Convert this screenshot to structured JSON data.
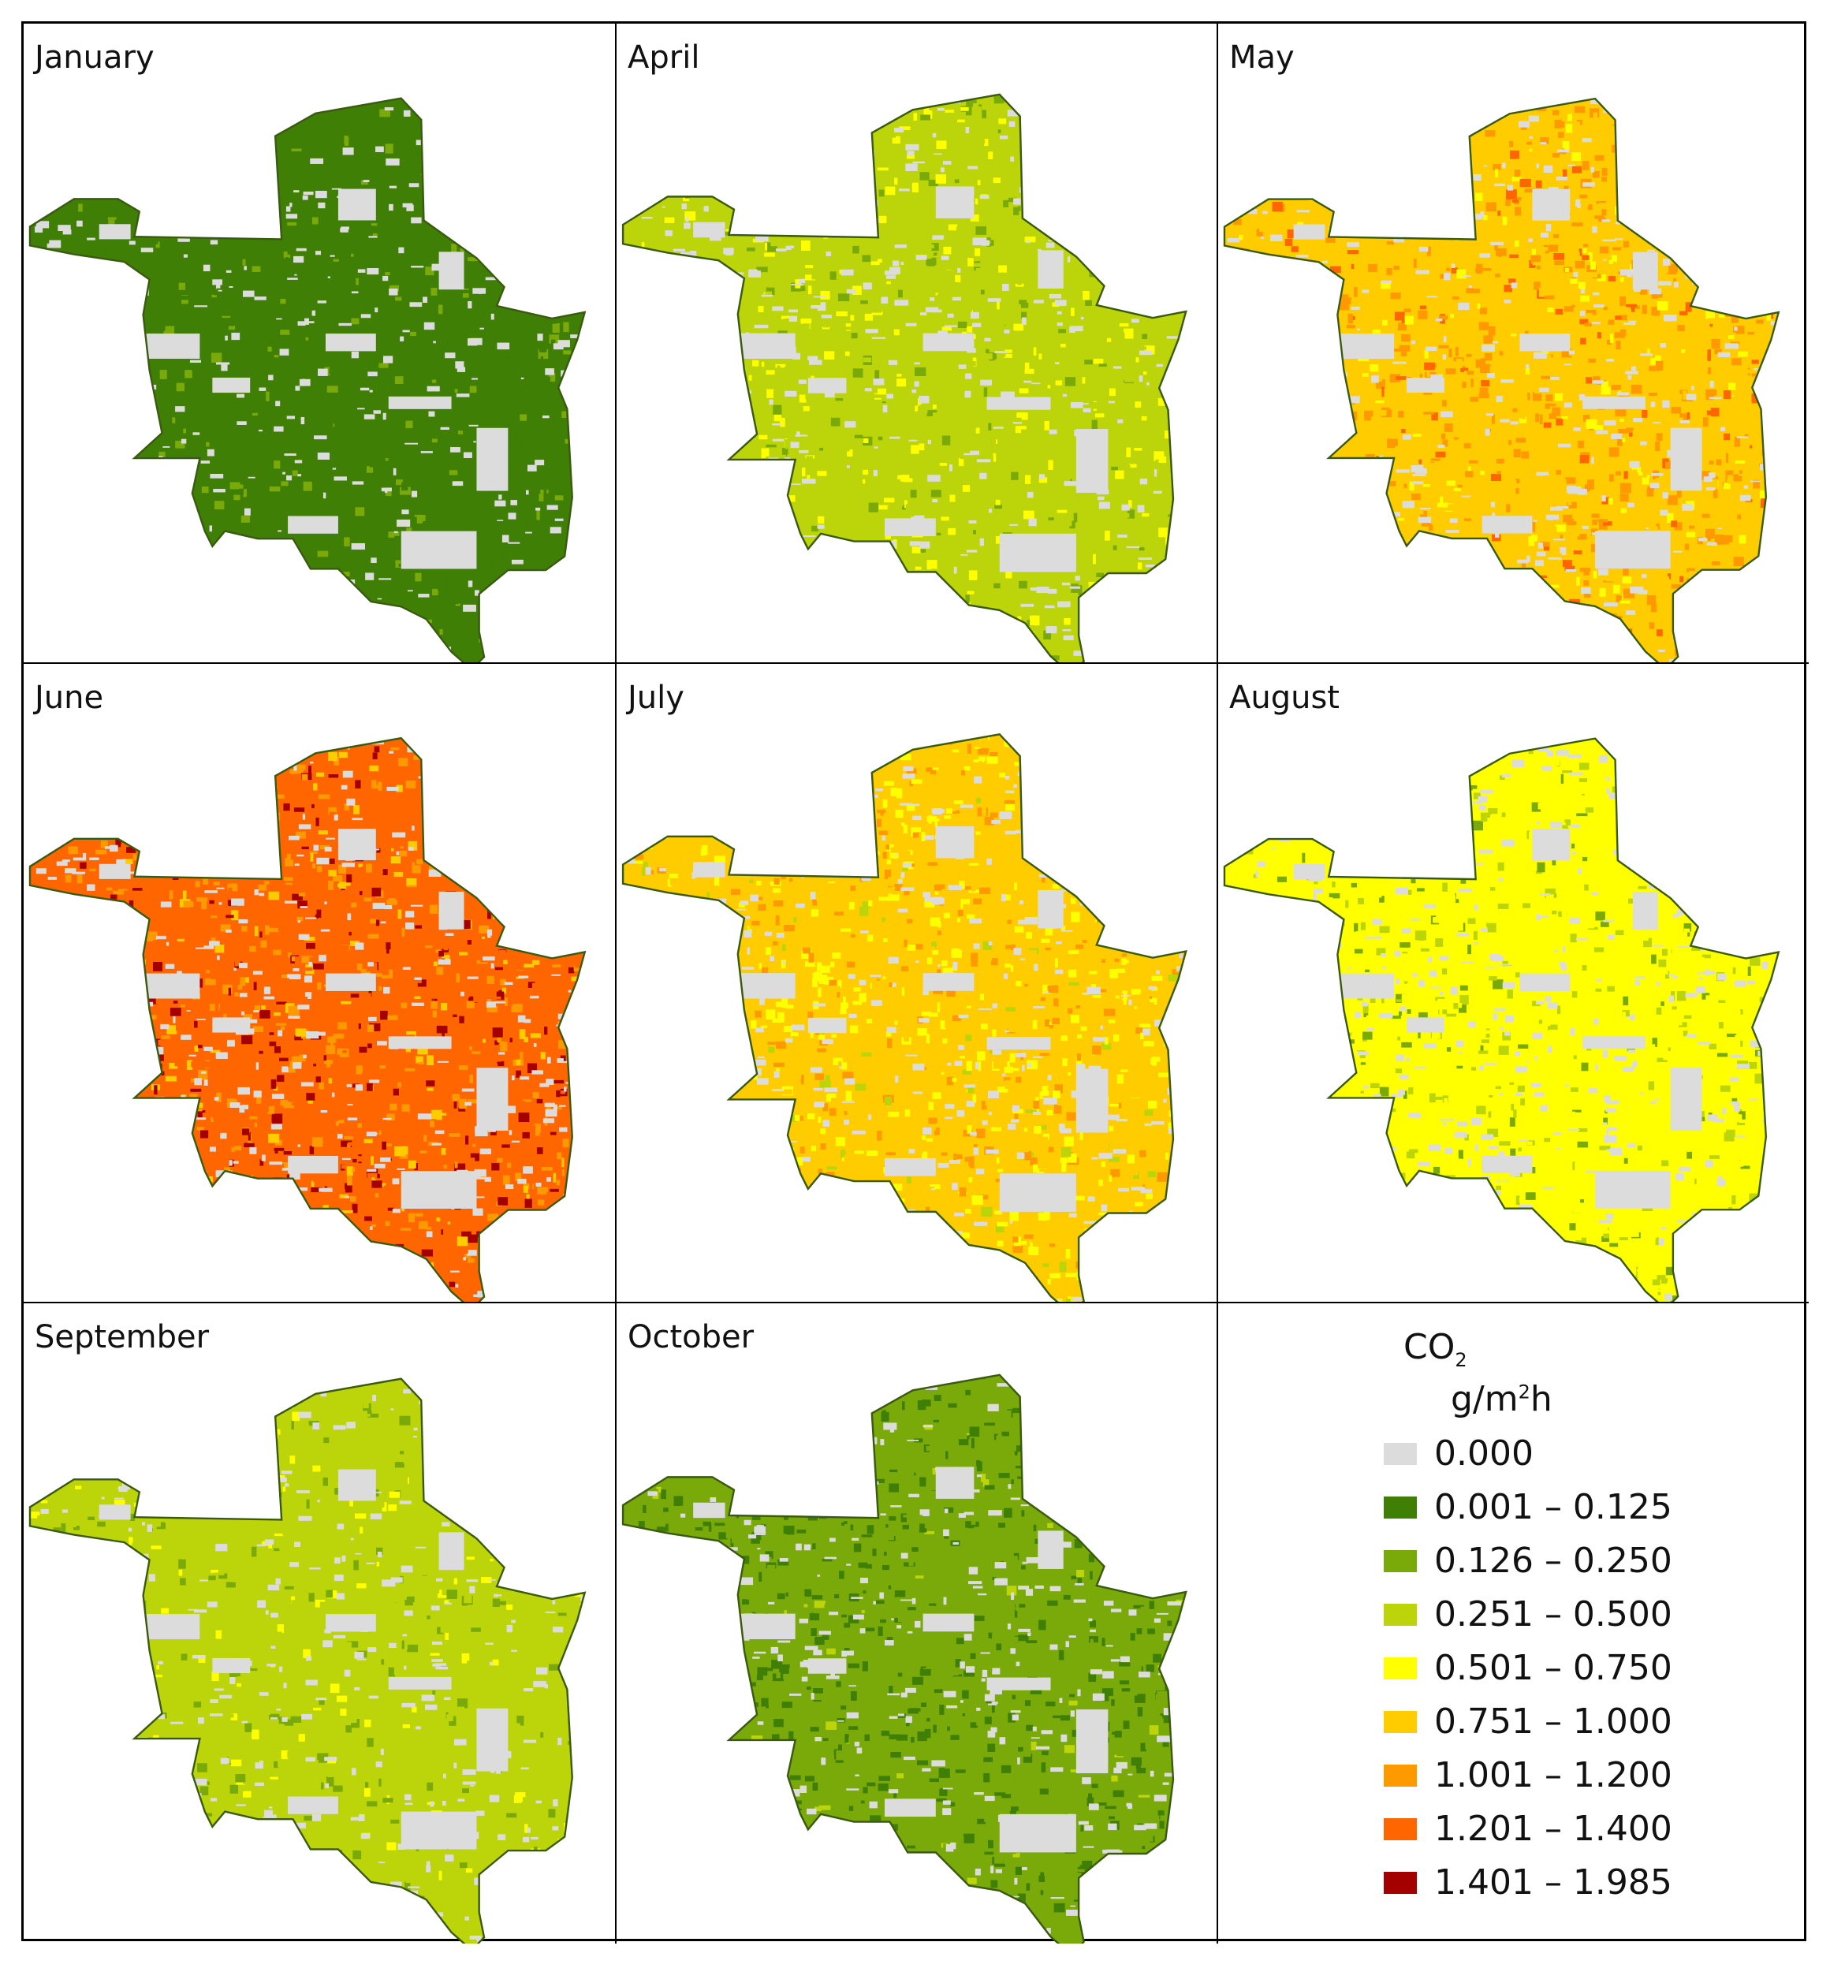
{
  "panels": [
    {
      "month": "January",
      "mix": [
        [
          1,
          0.85
        ],
        [
          2,
          0.15
        ]
      ]
    },
    {
      "month": "April",
      "mix": [
        [
          3,
          0.7
        ],
        [
          4,
          0.2
        ],
        [
          2,
          0.1
        ]
      ]
    },
    {
      "month": "May",
      "mix": [
        [
          5,
          0.45
        ],
        [
          6,
          0.35
        ],
        [
          7,
          0.1
        ],
        [
          4,
          0.1
        ]
      ]
    },
    {
      "month": "June",
      "mix": [
        [
          7,
          0.45
        ],
        [
          6,
          0.25
        ],
        [
          8,
          0.2
        ],
        [
          5,
          0.1
        ]
      ]
    },
    {
      "month": "July",
      "mix": [
        [
          5,
          0.45
        ],
        [
          4,
          0.3
        ],
        [
          6,
          0.2
        ],
        [
          3,
          0.05
        ]
      ]
    },
    {
      "month": "August",
      "mix": [
        [
          4,
          0.7
        ],
        [
          3,
          0.2
        ],
        [
          2,
          0.1
        ]
      ]
    },
    {
      "month": "September",
      "mix": [
        [
          3,
          0.8
        ],
        [
          2,
          0.1
        ],
        [
          4,
          0.1
        ]
      ]
    },
    {
      "month": "October",
      "mix": [
        [
          2,
          0.6
        ],
        [
          1,
          0.35
        ],
        [
          3,
          0.05
        ]
      ]
    }
  ],
  "legend": {
    "title": "CO",
    "title_sub": "2",
    "unit_pre": "g/m",
    "unit_sup": "2",
    "unit_post": "h",
    "classes": [
      {
        "label": "0.000",
        "color": "#dcdcdc"
      },
      {
        "label": "0.001 – 0.125",
        "color": "#3f7f06"
      },
      {
        "label": "0.126 – 0.250",
        "color": "#7aaa0a"
      },
      {
        "label": "0.251 – 0.500",
        "color": "#bcd40a"
      },
      {
        "label": "0.501 – 0.750",
        "color": "#ffff00"
      },
      {
        "label": "0.751 – 1.000",
        "color": "#ffcc00"
      },
      {
        "label": "1.001 – 1.200",
        "color": "#ff9900"
      },
      {
        "label": "1.201 – 1.400",
        "color": "#ff6600"
      },
      {
        "label": "1.401 – 1.985",
        "color": "#a50000"
      }
    ]
  }
}
